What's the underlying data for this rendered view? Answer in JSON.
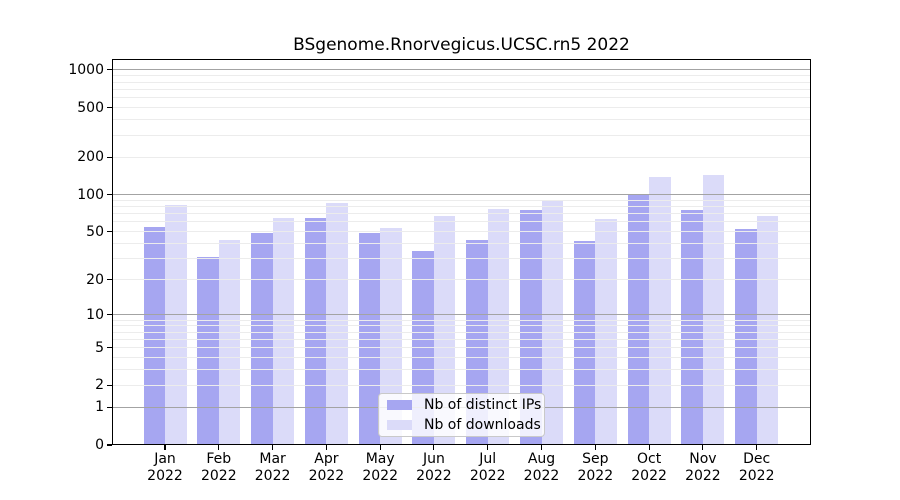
{
  "title": "BSgenome.Rnorvegicus.UCSC.rn5 2022",
  "x_axis": {
    "months": [
      "Jan",
      "Feb",
      "Mar",
      "Apr",
      "May",
      "Jun",
      "Jul",
      "Aug",
      "Sep",
      "Oct",
      "Nov",
      "Dec"
    ],
    "year": "2022"
  },
  "y_axis": {
    "tick_labels": [
      "0",
      "1",
      "2",
      "5",
      "10",
      "20",
      "50",
      "100",
      "200",
      "500",
      "1000"
    ],
    "tick_values": [
      0,
      1,
      2,
      5,
      10,
      20,
      50,
      100,
      200,
      500,
      1000
    ]
  },
  "legend": {
    "items": [
      {
        "label": "Nb of distinct IPs",
        "color": "#a6a6f1"
      },
      {
        "label": "Nb of downloads",
        "color": "#dbdbf9"
      }
    ]
  },
  "chart_data": {
    "type": "bar",
    "title": "BSgenome.Rnorvegicus.UCSC.rn5 2022",
    "categories": [
      "Jan 2022",
      "Feb 2022",
      "Mar 2022",
      "Apr 2022",
      "May 2022",
      "Jun 2022",
      "Jul 2022",
      "Aug 2022",
      "Sep 2022",
      "Oct 2022",
      "Nov 2022",
      "Dec 2022"
    ],
    "series": [
      {
        "name": "Nb of distinct IPs",
        "color": "#a6a6f1",
        "values": [
          55,
          31,
          49,
          65,
          49,
          35,
          43,
          75,
          42,
          100,
          75,
          53
        ]
      },
      {
        "name": "Nb of downloads",
        "color": "#dbdbf9",
        "values": [
          82,
          43,
          64,
          86,
          54,
          67,
          76,
          90,
          63,
          139,
          144,
          67
        ]
      }
    ],
    "xlabel": "",
    "ylabel": "",
    "y_scale": "log10(1+value), ~125px per decade",
    "y_ticks": [
      0,
      1,
      2,
      5,
      10,
      20,
      50,
      100,
      200,
      500,
      1000
    ],
    "ylim": [
      0,
      1258
    ],
    "grid": "horizontal, major at 1/10/100/1000, faint minors, drawn over bars",
    "legend_position": "lower center"
  },
  "colors": {
    "background": "#ffffff",
    "axis": "#000000",
    "grid_major": "#a3a3a3",
    "grid_minor": "#ececec",
    "text": "#000000",
    "legend_border": "#c9c9c9"
  }
}
